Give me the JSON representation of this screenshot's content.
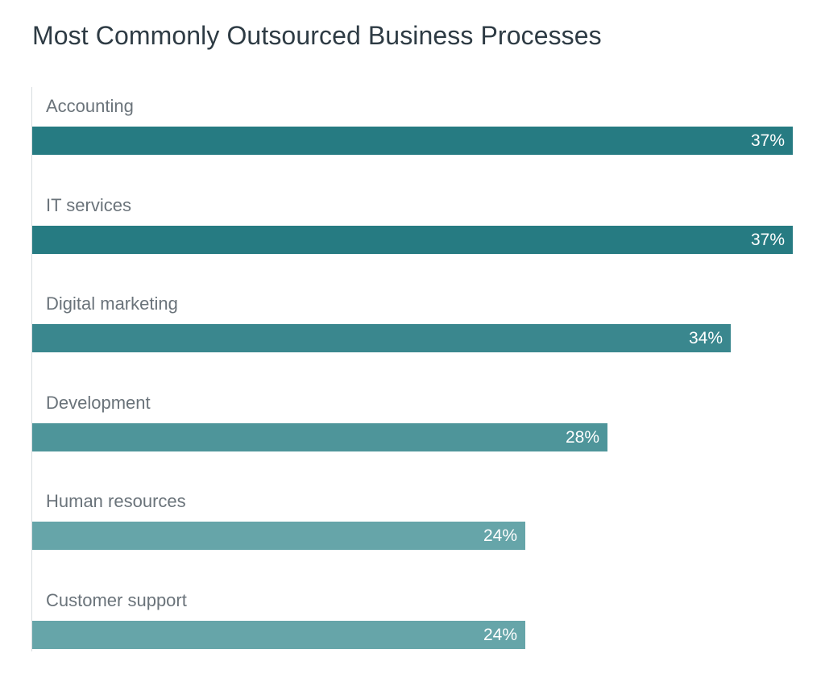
{
  "chart_data": {
    "type": "bar",
    "orientation": "horizontal",
    "title": "Most Commonly Outsourced Business Processes",
    "xlabel": "",
    "ylabel": "",
    "unit": "%",
    "categories": [
      "Accounting",
      "IT services",
      "Digital marketing",
      "Development",
      "Human resources",
      "Customer support"
    ],
    "values": [
      37,
      37,
      34,
      28,
      24,
      24
    ],
    "value_labels": [
      "37%",
      "37%",
      "34%",
      "28%",
      "24%",
      "24%"
    ],
    "xlim": [
      0,
      37
    ],
    "grid": false,
    "colors": [
      "#267b82",
      "#267b82",
      "#3a878e",
      "#4e959a",
      "#66a5a9",
      "#66a5a9"
    ]
  }
}
